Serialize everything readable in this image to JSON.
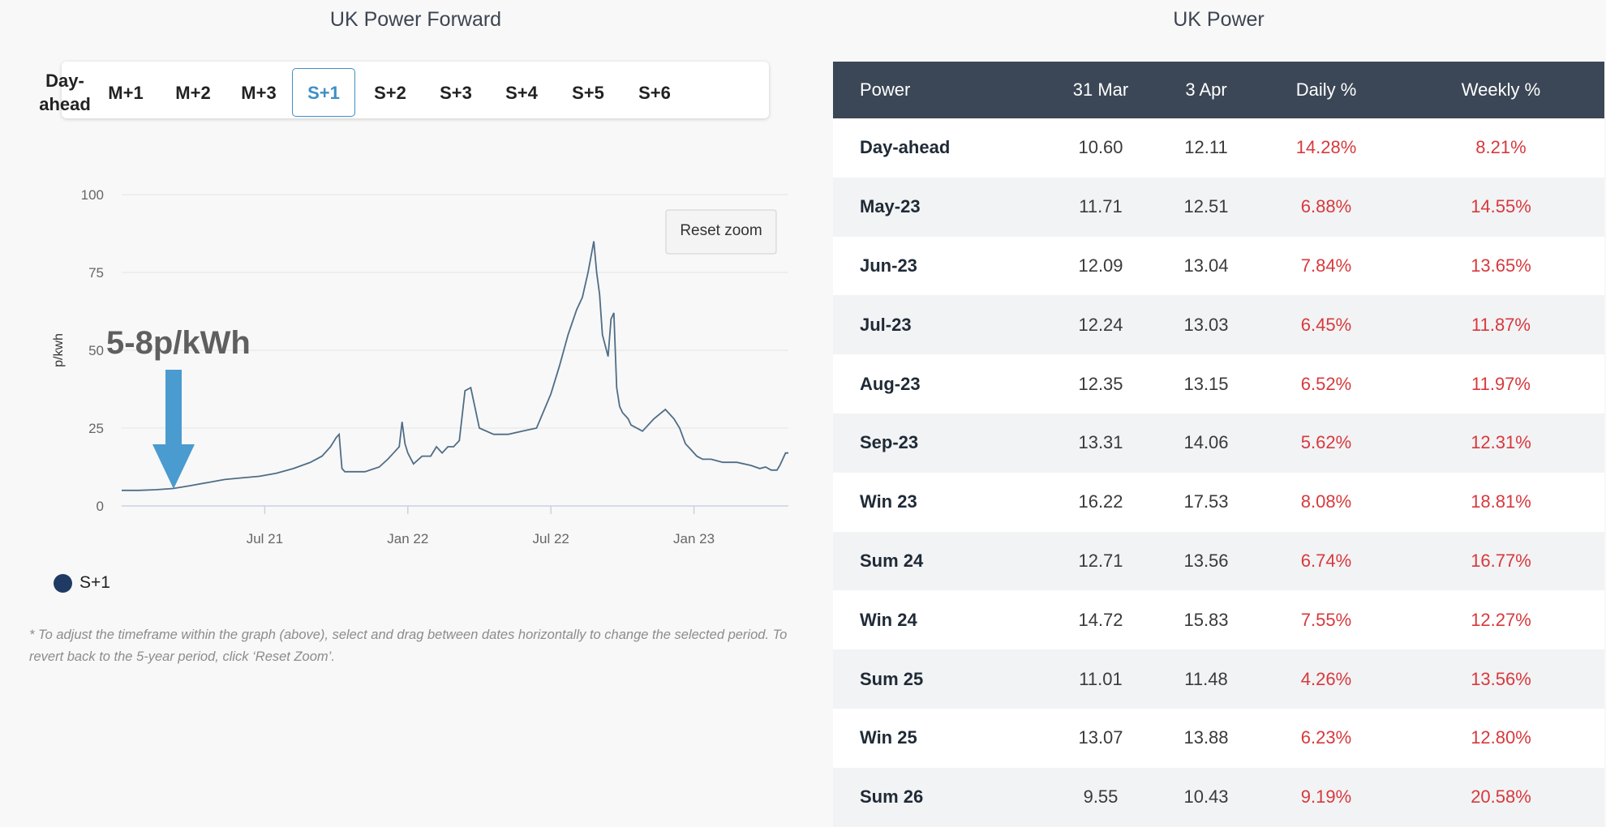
{
  "left_title": "UK Power Forward",
  "right_title": "UK Power",
  "tabs": [
    {
      "label": "Day-ahead",
      "active": false
    },
    {
      "label": "M+1",
      "active": false
    },
    {
      "label": "M+2",
      "active": false
    },
    {
      "label": "M+3",
      "active": false
    },
    {
      "label": "S+1",
      "active": true
    },
    {
      "label": "S+2",
      "active": false
    },
    {
      "label": "S+3",
      "active": false
    },
    {
      "label": "S+4",
      "active": false
    },
    {
      "label": "S+5",
      "active": false
    },
    {
      "label": "S+6",
      "active": false
    }
  ],
  "reset_zoom_label": "Reset zoom",
  "annotation": {
    "text": "5-8p/kWh",
    "color": "#4a9bcf"
  },
  "note": "* To adjust the timeframe within the graph (above), select and drag between dates horizontally to change the selected period. To revert back to the 5-year period, click ‘Reset Zoom’.",
  "colors": {
    "series_line": "#4f6d86",
    "legend_dot": "#1f3b63",
    "header_bg": "#3b4756",
    "negative_red": "#d8393c",
    "active_tab": "#3f8fc5"
  },
  "chart_data": {
    "type": "line",
    "title": "",
    "xlabel": "",
    "ylabel": "p/kwh",
    "xlim": [
      2021.0,
      2023.33
    ],
    "ylim": [
      0,
      100
    ],
    "yticks": [
      0,
      25,
      50,
      75,
      100
    ],
    "xticks": [
      {
        "value": 2021.5,
        "label": "Jul 21"
      },
      {
        "value": 2022.0,
        "label": "Jan 22"
      },
      {
        "value": 2022.5,
        "label": "Jul 22"
      },
      {
        "value": 2023.0,
        "label": "Jan 23"
      }
    ],
    "grid": true,
    "legend": "bottom-left",
    "series": [
      {
        "name": "S+1",
        "x": [
          2021.0,
          2021.06,
          2021.12,
          2021.18,
          2021.24,
          2021.3,
          2021.36,
          2021.42,
          2021.48,
          2021.54,
          2021.6,
          2021.66,
          2021.7,
          2021.73,
          2021.75,
          2021.76,
          2021.77,
          2021.78,
          2021.8,
          2021.85,
          2021.9,
          2021.93,
          2021.95,
          2021.97,
          2021.98,
          2021.99,
          2022.0,
          2022.02,
          2022.05,
          2022.08,
          2022.1,
          2022.12,
          2022.14,
          2022.16,
          2022.18,
          2022.2,
          2022.22,
          2022.25,
          2022.3,
          2022.35,
          2022.4,
          2022.45,
          2022.5,
          2022.53,
          2022.56,
          2022.59,
          2022.61,
          2022.63,
          2022.65,
          2022.66,
          2022.67,
          2022.68,
          2022.7,
          2022.71,
          2022.72,
          2022.73,
          2022.74,
          2022.75,
          2022.76,
          2022.77,
          2022.78,
          2022.82,
          2022.86,
          2022.9,
          2022.93,
          2022.95,
          2022.97,
          2022.99,
          2023.01,
          2023.03,
          2023.06,
          2023.1,
          2023.15,
          2023.2,
          2023.23,
          2023.25,
          2023.27,
          2023.29,
          2023.3,
          2023.32,
          2023.33
        ],
        "values": [
          5,
          5,
          5.2,
          5.6,
          6.5,
          7.5,
          8.5,
          9,
          9.5,
          10.5,
          12,
          14,
          16,
          19,
          22,
          23,
          12,
          11,
          11,
          11,
          12.5,
          15,
          17,
          19,
          27,
          20,
          17,
          13.5,
          16,
          16,
          19,
          17,
          19,
          19,
          21,
          37,
          38,
          25,
          23,
          23,
          24,
          25,
          36,
          45,
          55,
          63,
          67,
          75,
          85,
          75,
          68,
          55,
          48,
          60,
          62,
          38,
          32,
          30,
          29,
          28,
          26,
          24,
          28,
          31,
          28,
          25,
          20,
          18,
          16,
          15,
          15,
          14,
          14,
          13,
          12,
          12.5,
          11.5,
          11.5,
          13,
          17,
          17
        ]
      }
    ]
  },
  "table": {
    "columns": [
      "Power",
      "31 Mar",
      "3 Apr",
      "Daily %",
      "Weekly %"
    ],
    "rows": [
      [
        "Day-ahead",
        "10.60",
        "12.11",
        "14.28%",
        "8.21%"
      ],
      [
        "May-23",
        "11.71",
        "12.51",
        "6.88%",
        "14.55%"
      ],
      [
        "Jun-23",
        "12.09",
        "13.04",
        "7.84%",
        "13.65%"
      ],
      [
        "Jul-23",
        "12.24",
        "13.03",
        "6.45%",
        "11.87%"
      ],
      [
        "Aug-23",
        "12.35",
        "13.15",
        "6.52%",
        "11.97%"
      ],
      [
        "Sep-23",
        "13.31",
        "14.06",
        "5.62%",
        "12.31%"
      ],
      [
        "Win 23",
        "16.22",
        "17.53",
        "8.08%",
        "18.81%"
      ],
      [
        "Sum 24",
        "12.71",
        "13.56",
        "6.74%",
        "16.77%"
      ],
      [
        "Win 24",
        "14.72",
        "15.83",
        "7.55%",
        "12.27%"
      ],
      [
        "Sum 25",
        "11.01",
        "11.48",
        "4.26%",
        "13.56%"
      ],
      [
        "Win 25",
        "13.07",
        "13.88",
        "6.23%",
        "12.80%"
      ],
      [
        "Sum 26",
        "9.55",
        "10.43",
        "9.19%",
        "20.58%"
      ]
    ]
  }
}
